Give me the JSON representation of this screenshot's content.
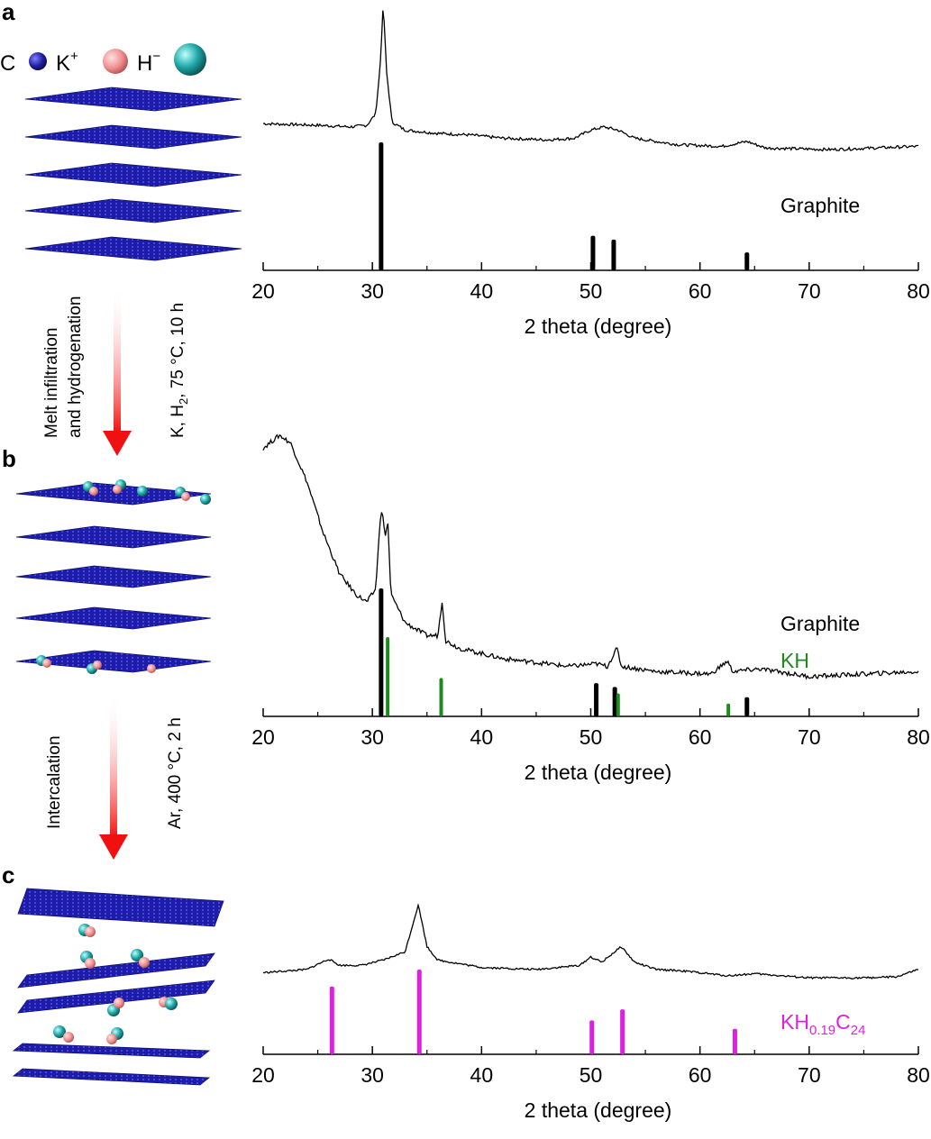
{
  "figure": {
    "panel_labels": [
      "a",
      "b",
      "c"
    ],
    "atom_key": {
      "carbon": "C",
      "potassium": "K",
      "potassium_charge": "+",
      "hydride": "H",
      "hydride_charge": "−",
      "colors": {
        "carbon": "#1a1a9a",
        "potassium": "#f0a0a0",
        "hydride": "#1a9a9a"
      }
    },
    "steps": [
      {
        "process_line1": "Melt infiltration",
        "process_line2": "and hydrogenation",
        "condition_K": "K, H",
        "condition_sub": "2",
        "condition_rest": ", 75 °C, 10 h"
      },
      {
        "process_line1": "Intercalation",
        "condition": "Ar, 400 °C, 2 h"
      }
    ]
  },
  "chart_data": [
    {
      "type": "line",
      "panel": "a",
      "xlabel": "2 theta (degree)",
      "xlim": [
        20,
        80
      ],
      "xticks": [
        "20",
        "30",
        "40",
        "50",
        "60",
        "70",
        "80"
      ],
      "pattern": [
        [
          20,
          0.26
        ],
        [
          25,
          0.25
        ],
        [
          28,
          0.24
        ],
        [
          29.5,
          0.25
        ],
        [
          30.3,
          0.32
        ],
        [
          30.7,
          0.6
        ],
        [
          31.0,
          1.0
        ],
        [
          31.3,
          0.58
        ],
        [
          31.8,
          0.27
        ],
        [
          33,
          0.22
        ],
        [
          36,
          0.2
        ],
        [
          39,
          0.19
        ],
        [
          42,
          0.17
        ],
        [
          46,
          0.16
        ],
        [
          48.5,
          0.17
        ],
        [
          50,
          0.22
        ],
        [
          51.2,
          0.24
        ],
        [
          52.5,
          0.22
        ],
        [
          54,
          0.17
        ],
        [
          58,
          0.13
        ],
        [
          62,
          0.12
        ],
        [
          64.3,
          0.15
        ],
        [
          66,
          0.11
        ],
        [
          72,
          0.1
        ],
        [
          80,
          0.12
        ]
      ],
      "reference": [
        {
          "name": "Graphite",
          "color": "#000000",
          "peaks": [
            [
              30.8,
              1.0
            ],
            [
              50.2,
              0.27
            ],
            [
              52.1,
              0.24
            ],
            [
              64.3,
              0.14
            ]
          ]
        }
      ]
    },
    {
      "type": "line",
      "panel": "b",
      "xlabel": "2 theta (degree)",
      "xlim": [
        20,
        80
      ],
      "xticks": [
        "20",
        "30",
        "40",
        "50",
        "60",
        "70",
        "80"
      ],
      "pattern": [
        [
          20,
          0.95
        ],
        [
          21.5,
          1.0
        ],
        [
          22.5,
          0.97
        ],
        [
          24,
          0.82
        ],
        [
          25.5,
          0.62
        ],
        [
          27,
          0.46
        ],
        [
          28.5,
          0.38
        ],
        [
          29.5,
          0.35
        ],
        [
          30.3,
          0.4
        ],
        [
          30.8,
          0.72
        ],
        [
          31.0,
          0.67
        ],
        [
          31.2,
          0.6
        ],
        [
          31.4,
          0.68
        ],
        [
          31.7,
          0.38
        ],
        [
          33,
          0.27
        ],
        [
          35,
          0.22
        ],
        [
          36,
          0.22
        ],
        [
          36.4,
          0.36
        ],
        [
          36.7,
          0.2
        ],
        [
          38,
          0.17
        ],
        [
          42,
          0.13
        ],
        [
          48,
          0.1
        ],
        [
          50.5,
          0.11
        ],
        [
          51.5,
          0.1
        ],
        [
          52.4,
          0.17
        ],
        [
          52.8,
          0.1
        ],
        [
          56,
          0.08
        ],
        [
          61,
          0.07
        ],
        [
          62.5,
          0.12
        ],
        [
          63,
          0.08
        ],
        [
          65.5,
          0.09
        ],
        [
          70,
          0.06
        ],
        [
          80,
          0.08
        ]
      ],
      "reference": [
        {
          "name": "Graphite",
          "color": "#000000",
          "peaks": [
            [
              30.8,
              1.0
            ],
            [
              50.5,
              0.26
            ],
            [
              52.2,
              0.23
            ],
            [
              64.3,
              0.15
            ]
          ]
        },
        {
          "name": "KH",
          "color": "#1e8a1e",
          "peaks": [
            [
              31.4,
              0.62
            ],
            [
              36.3,
              0.3
            ],
            [
              52.5,
              0.18
            ],
            [
              62.6,
              0.1
            ]
          ]
        }
      ]
    },
    {
      "type": "line",
      "panel": "c",
      "xlabel": "2 theta (degree)",
      "xlim": [
        20,
        80
      ],
      "xticks": [
        "20",
        "30",
        "40",
        "50",
        "60",
        "70",
        "80"
      ],
      "pattern": [
        [
          20,
          0.35
        ],
        [
          24,
          0.38
        ],
        [
          26,
          0.48
        ],
        [
          27,
          0.42
        ],
        [
          29,
          0.42
        ],
        [
          31,
          0.47
        ],
        [
          33,
          0.55
        ],
        [
          34.2,
          1.0
        ],
        [
          35,
          0.6
        ],
        [
          36,
          0.47
        ],
        [
          40,
          0.4
        ],
        [
          45,
          0.38
        ],
        [
          49,
          0.42
        ],
        [
          50,
          0.5
        ],
        [
          51,
          0.45
        ],
        [
          52.8,
          0.6
        ],
        [
          54,
          0.45
        ],
        [
          56,
          0.38
        ],
        [
          58,
          0.37
        ],
        [
          60,
          0.35
        ],
        [
          62.5,
          0.32
        ],
        [
          65,
          0.34
        ],
        [
          70,
          0.3
        ],
        [
          75,
          0.3
        ],
        [
          78,
          0.31
        ],
        [
          80,
          0.38
        ]
      ],
      "reference": [
        {
          "name": "KH",
          "sub1": "0.19",
          "name2": "C",
          "sub2": "24",
          "color": "#e020e0",
          "peaks": [
            [
              26.3,
              0.8
            ],
            [
              34.3,
              1.0
            ],
            [
              50.1,
              0.4
            ],
            [
              52.9,
              0.53
            ],
            [
              63.2,
              0.3
            ]
          ]
        }
      ]
    }
  ]
}
